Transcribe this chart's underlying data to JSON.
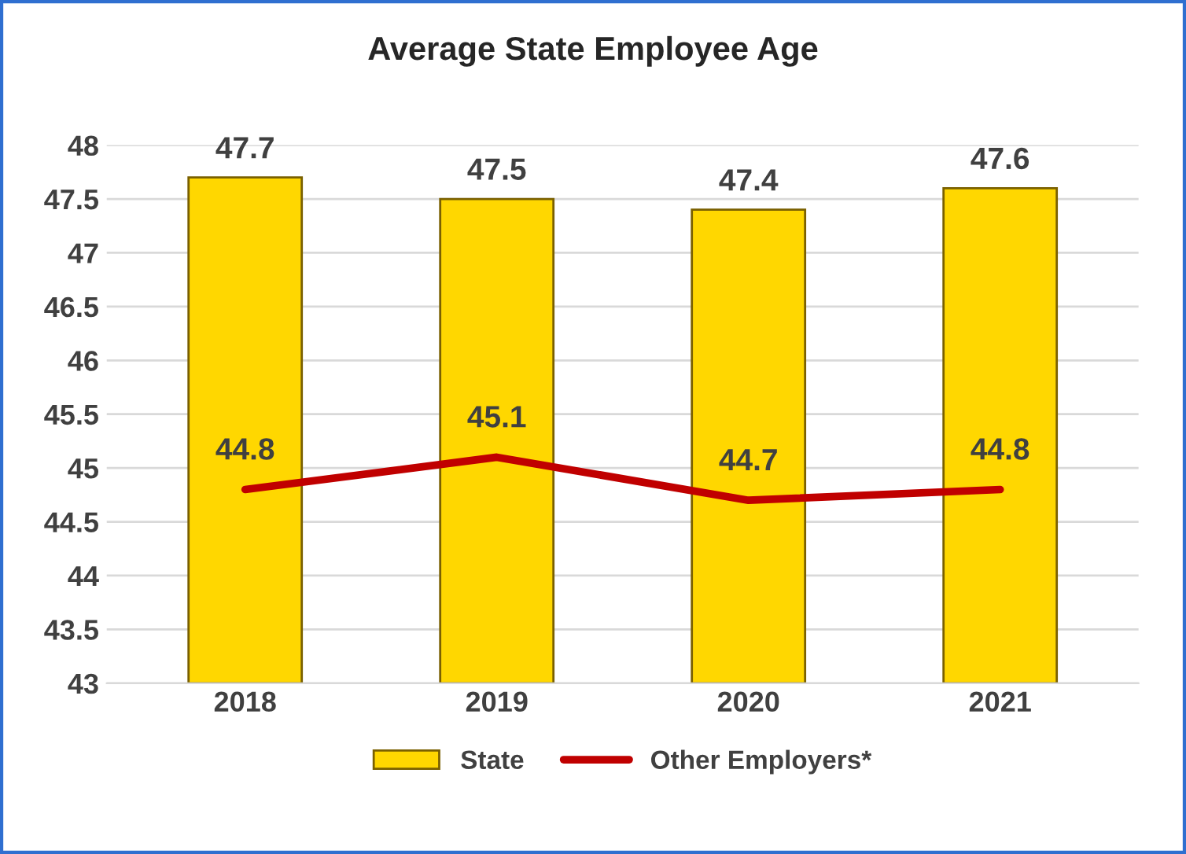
{
  "chart_data": {
    "type": "bar",
    "title": "Average State Employee Age",
    "categories": [
      "2018",
      "2019",
      "2020",
      "2021"
    ],
    "series": [
      {
        "name": "State",
        "color": "#ffd700",
        "values": [
          47.7,
          47.5,
          47.4,
          47.6
        ]
      },
      {
        "name": "Other Employers*",
        "type": "line",
        "color": "#c00000",
        "values": [
          44.8,
          45.1,
          44.7,
          44.8
        ]
      }
    ],
    "ylim": [
      43,
      48
    ],
    "yticks": [
      43,
      43.5,
      44,
      44.5,
      45,
      45.5,
      46,
      46.5,
      47,
      47.5,
      48
    ],
    "grid": "y",
    "legend": "bottom",
    "data_labels": true,
    "marker": "none",
    "line_style": "solid"
  }
}
